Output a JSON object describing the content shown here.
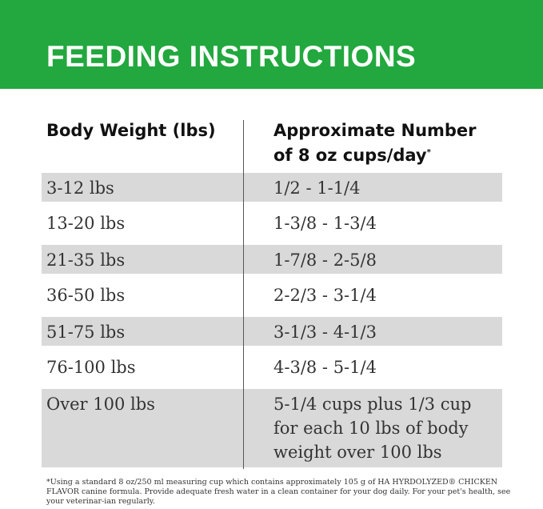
{
  "title": "FEEDING INSTRUCTIONS",
  "columns": {
    "weight": "Body Weight (lbs)",
    "cups": "Approximate Number of 8 oz cups/day",
    "cups_mark": "*"
  },
  "rows": [
    {
      "weight": "3-12 lbs",
      "cups": "1/2 - 1-1/4"
    },
    {
      "weight": "13-20 lbs",
      "cups": "1-3/8 - 1-3/4"
    },
    {
      "weight": "21-35 lbs",
      "cups": "1-7/8 - 2-5/8"
    },
    {
      "weight": "36-50 lbs",
      "cups": "2-2/3 - 3-1/4"
    },
    {
      "weight": "51-75 lbs",
      "cups": "3-1/3 - 4-1/3"
    },
    {
      "weight": "76-100 lbs",
      "cups": "4-3/8 - 5-1/4"
    },
    {
      "weight": "Over 100 lbs",
      "cups": "5-1/4 cups plus 1/3 cup for each 10 lbs of body weight over 100 lbs"
    }
  ],
  "footnote": "*Using a standard 8 oz/250 ml measuring cup which contains approximately 105 g of HA HYRDOLYZED® CHICKEN FLAVOR canine formula. Provide adequate fresh water in a clean container for your dog daily. For your pet's health, see your veterinar-ian regularly.",
  "colors": {
    "header": "#22a83e",
    "stripe": "#d9d9d9"
  }
}
